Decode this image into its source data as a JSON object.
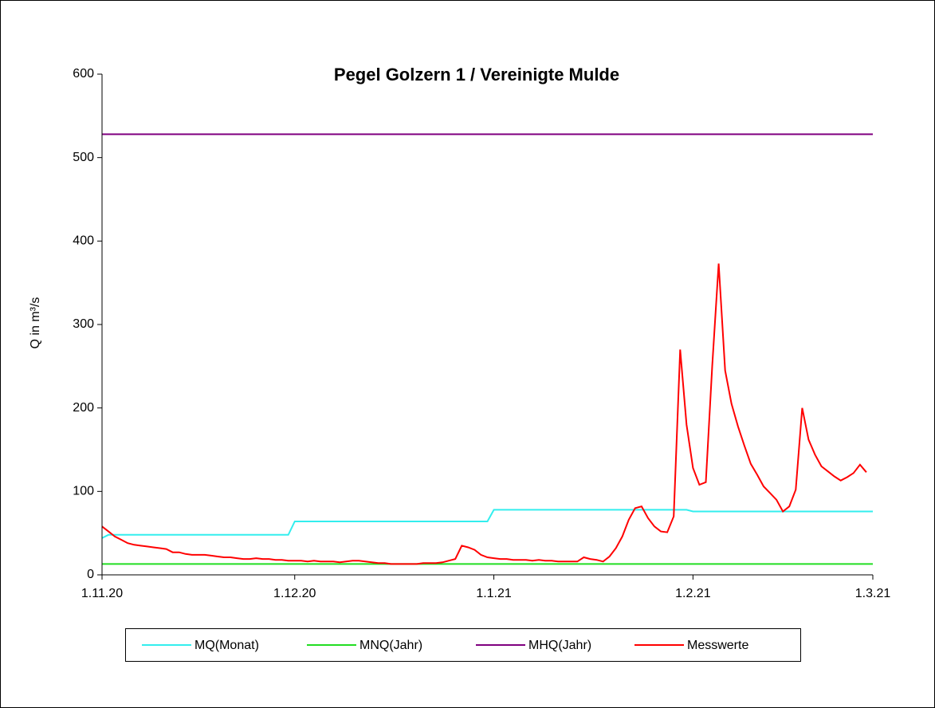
{
  "chart_data": {
    "type": "line",
    "title": "Pegel Golzern 1 / Vereinigte Mulde",
    "ylabel": "Q in m³/s",
    "xlim": [
      "1.11.20",
      "1.3.21"
    ],
    "xticks": [
      "1.11.20",
      "1.12.20",
      "1.1.21",
      "1.2.21",
      "1.3.21"
    ],
    "ylim": [
      0,
      600
    ],
    "yticks": [
      0,
      100,
      200,
      300,
      400,
      500,
      600
    ],
    "grid": false,
    "legend": "bottom",
    "series": [
      {
        "name": "MQ(Monat)",
        "color": "#33eeee",
        "x": [
          "1.11.20",
          "2.11.20",
          "30.11.20",
          "1.12.20",
          "31.12.20",
          "1.1.21",
          "31.1.21",
          "1.2.21",
          "1.3.21"
        ],
        "values": [
          44,
          48,
          48,
          64,
          64,
          78,
          78,
          76,
          76
        ]
      },
      {
        "name": "MNQ(Jahr)",
        "color": "#22dd22",
        "x": [
          "1.11.20",
          "1.3.21"
        ],
        "values": [
          13,
          13
        ]
      },
      {
        "name": "MHQ(Jahr)",
        "color": "#800080",
        "x": [
          "1.11.20",
          "1.3.21"
        ],
        "values": [
          528,
          528
        ]
      },
      {
        "name": "Messwerte",
        "color": "#ff0000",
        "x": [
          "1.11.20",
          "2.11.20",
          "3.11.20",
          "4.11.20",
          "5.11.20",
          "6.11.20",
          "7.11.20",
          "8.11.20",
          "9.11.20",
          "10.11.20",
          "11.11.20",
          "12.11.20",
          "13.11.20",
          "14.11.20",
          "15.11.20",
          "16.11.20",
          "17.11.20",
          "18.11.20",
          "19.11.20",
          "20.11.20",
          "21.11.20",
          "22.11.20",
          "23.11.20",
          "24.11.20",
          "25.11.20",
          "26.11.20",
          "27.11.20",
          "28.11.20",
          "29.11.20",
          "30.11.20",
          "1.12.20",
          "2.12.20",
          "3.12.20",
          "4.12.20",
          "5.12.20",
          "6.12.20",
          "7.12.20",
          "8.12.20",
          "9.12.20",
          "10.12.20",
          "11.12.20",
          "12.12.20",
          "13.12.20",
          "14.12.20",
          "15.12.20",
          "16.12.20",
          "17.12.20",
          "18.12.20",
          "19.12.20",
          "20.12.20",
          "21.12.20",
          "22.12.20",
          "23.12.20",
          "24.12.20",
          "25.12.20",
          "26.12.20",
          "27.12.20",
          "28.12.20",
          "29.12.20",
          "30.12.20",
          "31.12.20",
          "1.1.21",
          "2.1.21",
          "3.1.21",
          "4.1.21",
          "5.1.21",
          "6.1.21",
          "7.1.21",
          "8.1.21",
          "9.1.21",
          "10.1.21",
          "11.1.21",
          "12.1.21",
          "13.1.21",
          "14.1.21",
          "15.1.21",
          "16.1.21",
          "17.1.21",
          "18.1.21",
          "19.1.21",
          "20.1.21",
          "21.1.21",
          "22.1.21",
          "23.1.21",
          "24.1.21",
          "25.1.21",
          "26.1.21",
          "27.1.21",
          "28.1.21",
          "29.1.21",
          "30.1.21",
          "31.1.21",
          "1.2.21",
          "2.2.21",
          "3.2.21",
          "4.2.21",
          "5.2.21",
          "6.2.21",
          "7.2.21",
          "8.2.21",
          "9.2.21",
          "10.2.21",
          "11.2.21",
          "12.2.21",
          "13.2.21",
          "14.2.21",
          "15.2.21",
          "16.2.21",
          "17.2.21",
          "18.2.21",
          "19.2.21",
          "20.2.21",
          "21.2.21",
          "22.2.21",
          "23.2.21",
          "24.2.21",
          "25.2.21",
          "26.2.21",
          "27.2.21",
          "28.2.21"
        ],
        "values": [
          58,
          52,
          46,
          42,
          38,
          36,
          35,
          34,
          33,
          32,
          31,
          27,
          27,
          25,
          24,
          24,
          24,
          23,
          22,
          21,
          21,
          20,
          19,
          19,
          20,
          19,
          19,
          18,
          18,
          17,
          17,
          17,
          16,
          17,
          16,
          16,
          16,
          15,
          16,
          17,
          17,
          16,
          15,
          14,
          14,
          13,
          13,
          13,
          13,
          13,
          14,
          14,
          14,
          15,
          17,
          19,
          35,
          33,
          30,
          24,
          21,
          20,
          19,
          19,
          18,
          18,
          18,
          17,
          18,
          17,
          17,
          16,
          16,
          16,
          16,
          21,
          19,
          18,
          16,
          22,
          32,
          46,
          66,
          80,
          82,
          68,
          58,
          52,
          51,
          70,
          270,
          180,
          128,
          108,
          111,
          250,
          373,
          245,
          205,
          178,
          155,
          133,
          120,
          106,
          98,
          90,
          76,
          82,
          102,
          200,
          162,
          144,
          130,
          124,
          118,
          113,
          117,
          122,
          132,
          123
        ]
      }
    ]
  }
}
